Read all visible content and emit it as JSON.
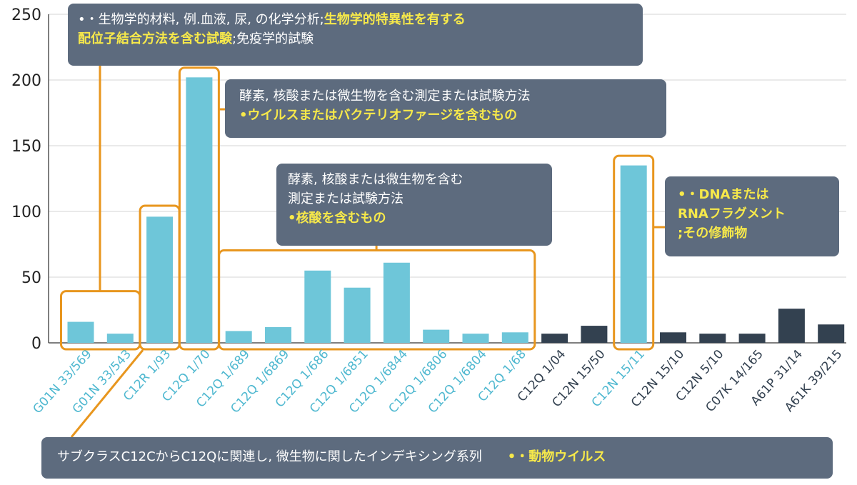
{
  "colors": {
    "highlight_bar": "#6ec6d9",
    "other_bar": "#334150",
    "highlight_label": "#4fb8d0",
    "other_label": "#334150",
    "bracket": "#e8961e",
    "callout_bg": "#5d6b7e",
    "callout_highlight_text": "#f7e94a",
    "callout_text": "#ffffff",
    "grid": "#d4d4d4"
  },
  "chart_data": {
    "type": "bar",
    "ylim": [
      0,
      250
    ],
    "yticks": [
      "0",
      "50",
      "100",
      "150",
      "200",
      "250"
    ],
    "grid": "horizontal",
    "categories": [
      "G01N 33/569",
      "G01N 33/543",
      "C12R 1/93",
      "C12Q 1/70",
      "C12Q 1/689",
      "C12Q 1/6869",
      "C12Q 1/686",
      "C12Q 1/6851",
      "C12Q 1/6844",
      "C12Q 1/6806",
      "C12Q 1/6804",
      "C12Q 1/68",
      "C12Q 1/04",
      "C12N 15/50",
      "C12N 15/11",
      "C12N 15/10",
      "C12N 5/10",
      "C07K 14/165",
      "A61P 31/14",
      "A61K 39/215"
    ],
    "values": [
      16,
      7,
      96,
      202,
      9,
      12,
      55,
      42,
      61,
      10,
      7,
      8,
      7,
      13,
      135,
      8,
      7,
      7,
      26,
      14
    ],
    "highlighted": [
      true,
      true,
      true,
      true,
      true,
      true,
      true,
      true,
      true,
      true,
      true,
      true,
      false,
      false,
      true,
      false,
      false,
      false,
      false,
      false
    ]
  },
  "callouts": {
    "top_left": {
      "line1_plain": "•・生物学的材料, 例.血液, 尿, の化学分析;",
      "line1_highlight": "生物学的特異性を有する",
      "line2_highlight": "配位子結合方法を含む試験",
      "line2_plain": ";免疫学的試験"
    },
    "virus": {
      "line1": "酵素, 核酸または微生物を含む測定または試験方法",
      "line2": "•ウイルスまたはバクテリオファージを含むもの"
    },
    "nucleic": {
      "line1": "酵素, 核酸または微生物を含む",
      "line2": "測定または試験方法",
      "line3": "•核酸を含むもの"
    },
    "dna": {
      "line1": "•・DNAまたは",
      "line2": "RNAフラグメント",
      "line3": ";その修飾物"
    },
    "bottom": {
      "plain": "サブクラスC12CからC12Qに関連し, 微生物に関したインデキシング系列",
      "highlight": "•・動物ウイルス"
    }
  }
}
